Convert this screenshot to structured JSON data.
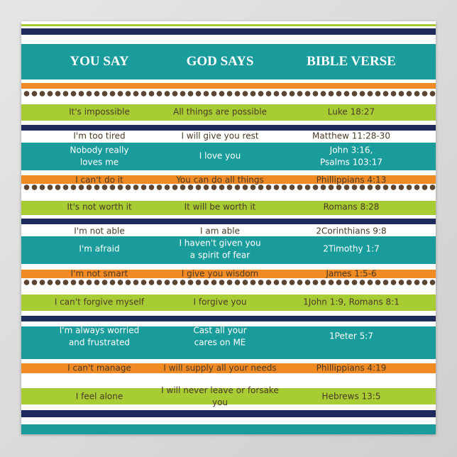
{
  "header": {
    "columns": [
      "YOU SAY",
      "GOD SAYS",
      "BIBLE VERSE"
    ]
  },
  "rows": [
    [
      [
        "It's impossible"
      ],
      [
        "All things are possible"
      ],
      [
        "Luke 18:27"
      ]
    ],
    [
      [
        "I'm too tired"
      ],
      [
        "I will give you rest"
      ],
      [
        "Matthew 11:28-30"
      ]
    ],
    [
      [
        "Nobody really",
        "loves me"
      ],
      [
        "I love you"
      ],
      [
        "John 3:16,",
        "Psalms 103:17"
      ]
    ],
    [
      [
        "I can't do it"
      ],
      [
        "You can do all things"
      ],
      [
        "Phillippians 4:13"
      ]
    ],
    [
      [
        "It's not worth it"
      ],
      [
        "It will be worth it"
      ],
      [
        "Romans 8:28"
      ]
    ],
    [
      [
        "I'm not able"
      ],
      [
        "I am able"
      ],
      [
        "2Corinthians 9:8"
      ]
    ],
    [
      [
        "I'm afraid"
      ],
      [
        "I haven't given you",
        "a spirit of fear"
      ],
      [
        "2Timothy 1:7"
      ]
    ],
    [
      [
        "I'm not smart"
      ],
      [
        "I give you wisdom"
      ],
      [
        "James 1:5-6"
      ]
    ],
    [
      [
        "I can't forgive myself"
      ],
      [
        "I forgive you"
      ],
      [
        "1John 1:9, Romans 8:1"
      ]
    ],
    [
      [
        "I'm always worried",
        "and frustrated"
      ],
      [
        "Cast all your",
        "cares on ME"
      ],
      [
        "1Peter 5:7"
      ]
    ],
    [
      [
        "I can't manage"
      ],
      [
        "I will supply all your needs"
      ],
      [
        "Phillippians 4:19"
      ]
    ],
    [
      [
        "I feel alone"
      ],
      [
        "I will never leave or forsake you"
      ],
      [
        "Hebrews 13:5"
      ]
    ]
  ]
}
